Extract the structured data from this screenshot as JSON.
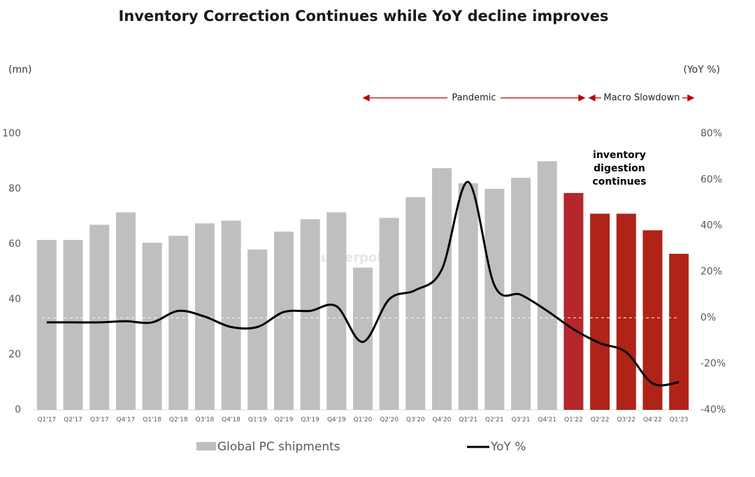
{
  "chart_data": {
    "type": "bar",
    "title": "Inventory Correction Continues while YoY decline improves",
    "y_axis_unit": "(mn)",
    "y2_axis_unit": "(YoY %)",
    "categories": [
      "Q1'17",
      "Q2'17",
      "Q3'17",
      "Q4'17",
      "Q1'18",
      "Q2'18",
      "Q3'18",
      "Q4'18",
      "Q1'19",
      "Q2'19",
      "Q3'19",
      "Q4'19",
      "Q1'20",
      "Q2'20",
      "Q3'20",
      "Q4'20",
      "Q1'21",
      "Q2'21",
      "Q3'21",
      "Q4'21",
      "Q1'22",
      "Q2'22",
      "Q3'22",
      "Q4'22",
      "Q1'23"
    ],
    "series": [
      {
        "name": "Global PC shipments",
        "type": "bar",
        "color": "#bfbfbf",
        "colors": [
          "#bfbfbf",
          "#bfbfbf",
          "#bfbfbf",
          "#bfbfbf",
          "#bfbfbf",
          "#bfbfbf",
          "#bfbfbf",
          "#bfbfbf",
          "#bfbfbf",
          "#bfbfbf",
          "#bfbfbf",
          "#bfbfbf",
          "#bfbfbf",
          "#bfbfbf",
          "#bfbfbf",
          "#bfbfbf",
          "#bfbfbf",
          "#bfbfbf",
          "#bfbfbf",
          "#bfbfbf",
          "#b5272d",
          "#b02318",
          "#b02318",
          "#b02318",
          "#b02318"
        ],
        "values": [
          61.5,
          61.5,
          67,
          71.5,
          60.5,
          63,
          67.5,
          68.5,
          58,
          64.5,
          69,
          71.5,
          51.5,
          69.5,
          77,
          87.5,
          82,
          80,
          84,
          90,
          78.5,
          71,
          71,
          65,
          56.5
        ]
      },
      {
        "name": "YoY %",
        "type": "line",
        "axis": "y2",
        "color": "#000000",
        "values": [
          -2,
          -2,
          -2,
          -1.5,
          -2,
          3,
          0.5,
          -4,
          -4,
          2.5,
          3,
          5,
          -10.5,
          8,
          12,
          21,
          59,
          14,
          10,
          3,
          -5,
          -11,
          -15,
          -28.5,
          -28
        ]
      }
    ],
    "ylim": [
      0,
      100
    ],
    "yticks": [
      0,
      20,
      40,
      60,
      80,
      100
    ],
    "y2lim": [
      -40,
      80
    ],
    "y2ticks": [
      {
        "value": -40,
        "label": "-40%"
      },
      {
        "value": -20,
        "label": "-20%"
      },
      {
        "value": 0,
        "label": "0%"
      },
      {
        "value": 20,
        "label": "20%"
      },
      {
        "value": 40,
        "label": "40%"
      },
      {
        "value": 60,
        "label": "60%"
      },
      {
        "value": 80,
        "label": "80%"
      }
    ],
    "periods": [
      {
        "text": "Pandemic"
      },
      {
        "text": "Macro Slowdown"
      }
    ],
    "annotation": [
      "inventory",
      "digestion",
      "continues"
    ],
    "watermark": "Counterpoint",
    "zero_line": true,
    "legend": "bottom"
  }
}
